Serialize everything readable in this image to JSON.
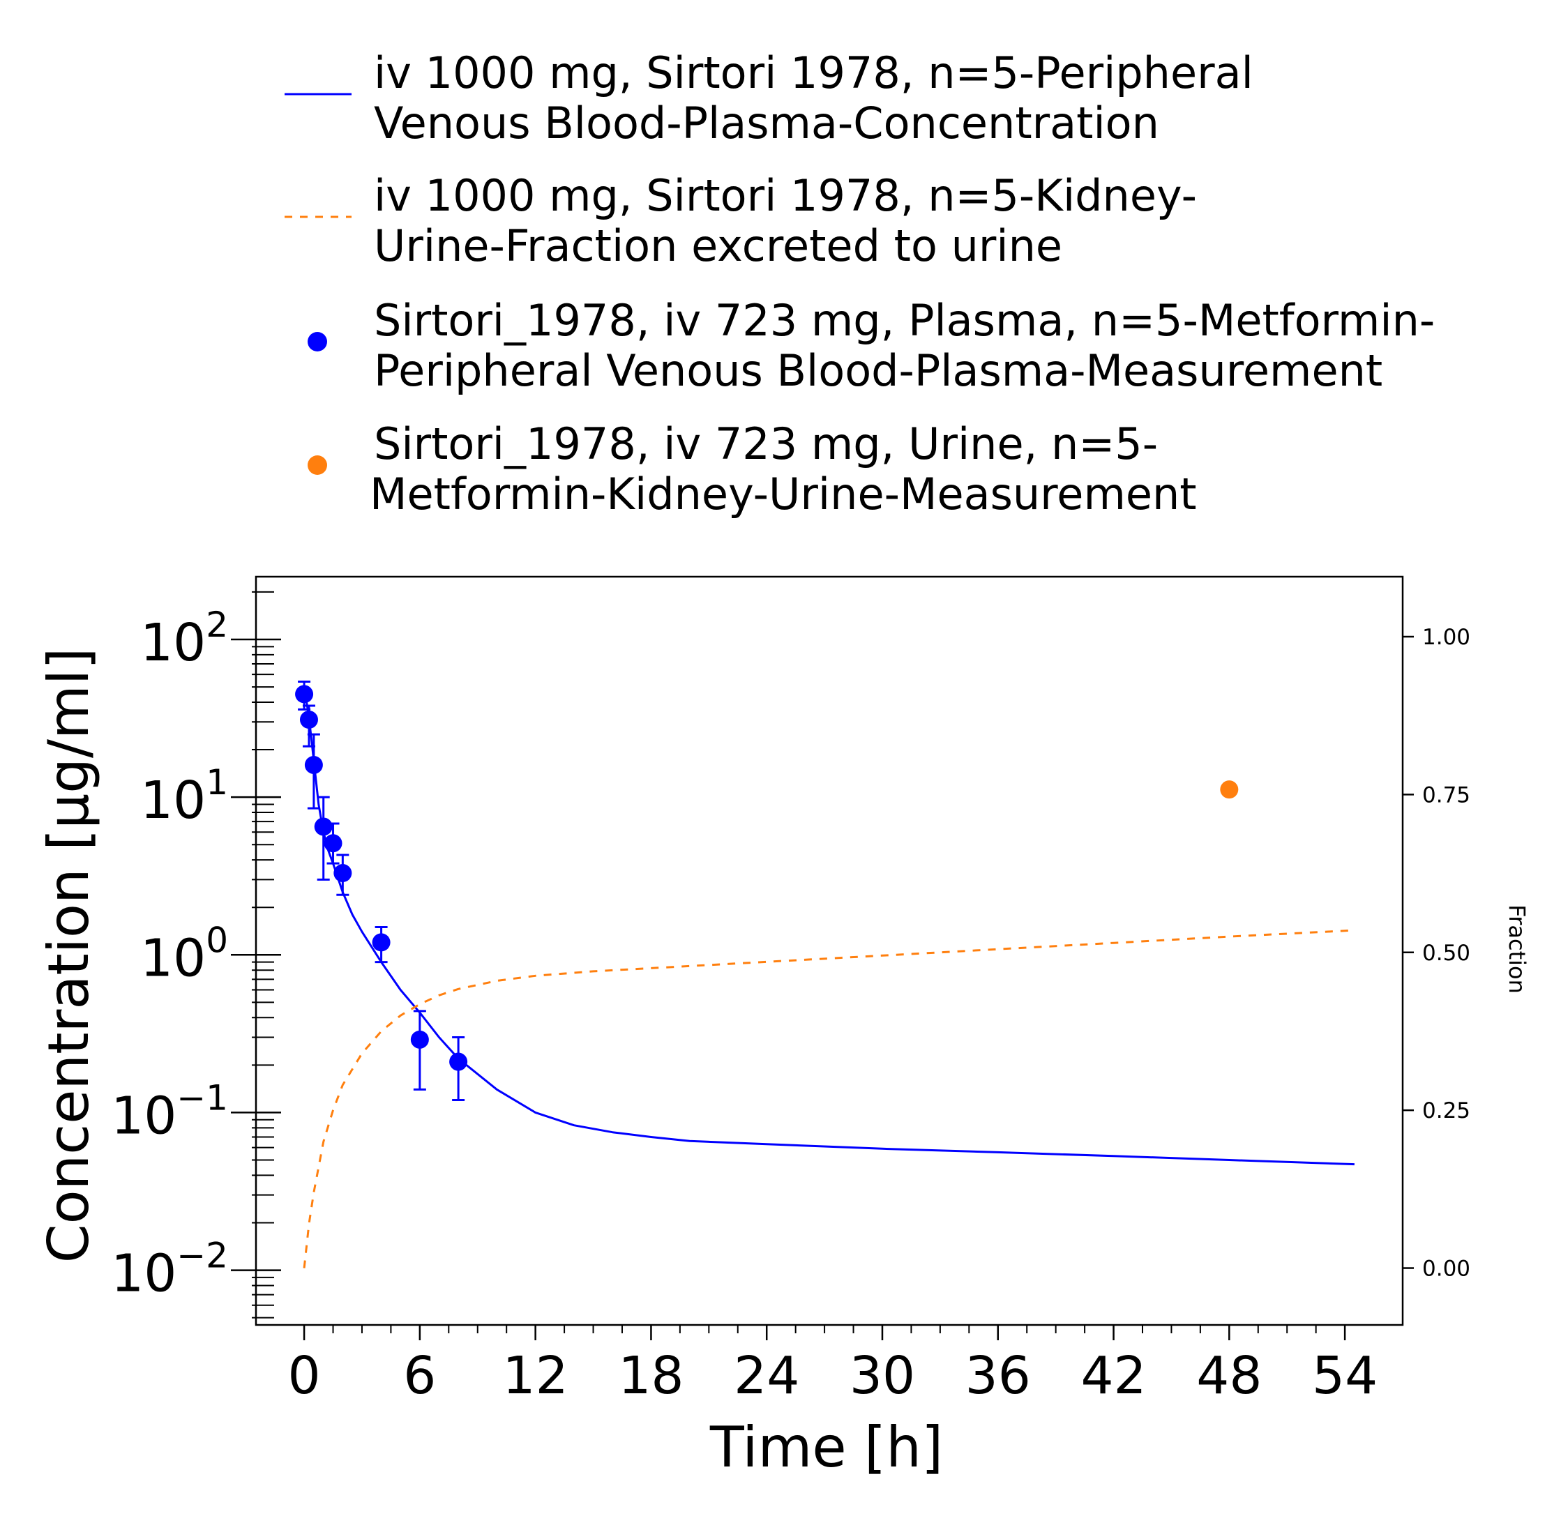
{
  "legend": [
    {
      "label_lines": [
        "iv 1000 mg, Sirtori 1978, n=5-Peripheral",
        "Venous Blood-Plasma-Concentration"
      ],
      "kind": "line",
      "color": "#0000ff"
    },
    {
      "label_lines": [
        "iv 1000 mg, Sirtori 1978, n=5-Kidney-",
        "Urine-Fraction excreted to urine"
      ],
      "kind": "dashed",
      "color": "#ff7f0e"
    },
    {
      "label_lines": [
        "Sirtori_1978, iv 723 mg, Plasma, n=5-Metformin-",
        "Peripheral Venous Blood-Plasma-Measurement"
      ],
      "kind": "marker",
      "color": "#0000ff"
    },
    {
      "label_lines": [
        "Sirtori_1978, iv 723 mg, Urine, n=5-",
        "Metformin-Kidney-Urine-Measurement"
      ],
      "kind": "marker",
      "color": "#ff7f0e"
    }
  ],
  "chart_data": {
    "type": "line",
    "xlabel": "Time [h]",
    "ylabel": "Concentration [µg/ml]",
    "y2label": "Fraction",
    "xlim": [
      -2.5,
      57
    ],
    "ylim": [
      0.0045,
      250
    ],
    "y_scale": "log",
    "y2lim": [
      -0.09,
      1.095
    ],
    "x_ticks": [
      "0",
      "6",
      "12",
      "18",
      "24",
      "30",
      "36",
      "42",
      "48",
      "54"
    ],
    "y_ticks": [
      {
        "value": 100,
        "base": "10",
        "exp": "2"
      },
      {
        "value": 10,
        "base": "10",
        "exp": "1"
      },
      {
        "value": 1,
        "base": "10",
        "exp": "0"
      },
      {
        "value": 0.1,
        "base": "10",
        "exp": "−1"
      },
      {
        "value": 0.01,
        "base": "10",
        "exp": "−2"
      }
    ],
    "y2_ticks": [
      "1.00",
      "0.75",
      "0.50",
      "0.25",
      "0.00"
    ],
    "series": [
      {
        "kind": "line",
        "axis": "left",
        "color": "#0000ff",
        "x": [
          0,
          0.25,
          0.5,
          0.75,
          1,
          1.25,
          1.5,
          2,
          2.5,
          3,
          4,
          5,
          6,
          7,
          8,
          10,
          12,
          14,
          16,
          18,
          20,
          24,
          30,
          36,
          42,
          48,
          54.5
        ],
        "y": [
          50,
          32,
          17,
          9,
          6,
          4.6,
          3.8,
          2.5,
          1.8,
          1.4,
          0.9,
          0.6,
          0.43,
          0.3,
          0.22,
          0.14,
          0.1,
          0.083,
          0.075,
          0.07,
          0.066,
          0.063,
          0.059,
          0.056,
          0.053,
          0.05,
          0.047
        ]
      },
      {
        "kind": "dashed",
        "axis": "right",
        "color": "#ff7f0e",
        "x": [
          0,
          0.25,
          0.5,
          1,
          1.5,
          2,
          3,
          4,
          5,
          6,
          7,
          8,
          10,
          12,
          15,
          18,
          24,
          30,
          36,
          42,
          48,
          54.5
        ],
        "y": [
          0.0,
          0.07,
          0.12,
          0.2,
          0.25,
          0.29,
          0.34,
          0.375,
          0.4,
          0.418,
          0.432,
          0.442,
          0.455,
          0.463,
          0.47,
          0.475,
          0.485,
          0.495,
          0.505,
          0.515,
          0.525,
          0.535
        ]
      },
      {
        "kind": "scatter",
        "axis": "left",
        "color": "#0000ff",
        "x": [
          0,
          0.25,
          0.5,
          1,
          1.5,
          2,
          4,
          6,
          8
        ],
        "y": [
          45,
          31,
          16,
          6.5,
          5.1,
          3.3,
          1.2,
          0.29,
          0.21
        ],
        "err_low": [
          36,
          21,
          8.5,
          3.0,
          3.8,
          2.4,
          0.9,
          0.14,
          0.12
        ],
        "err_high": [
          54,
          38,
          25,
          10,
          6.8,
          4.3,
          1.5,
          0.44,
          0.3
        ]
      },
      {
        "kind": "scatter",
        "axis": "right",
        "color": "#ff7f0e",
        "x": [
          48
        ],
        "y": [
          0.758
        ]
      }
    ]
  }
}
